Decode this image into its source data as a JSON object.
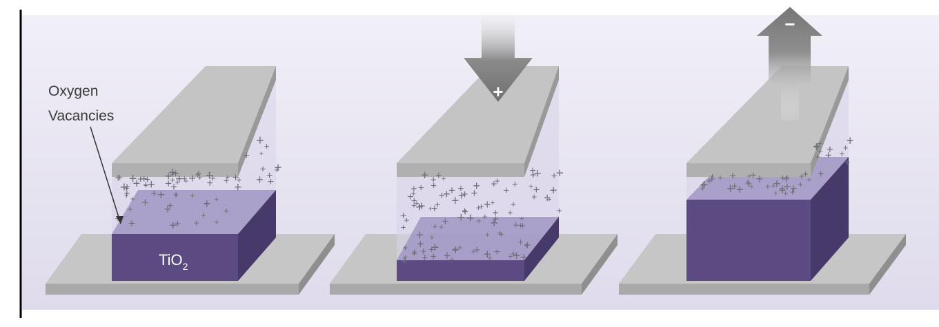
{
  "annotations": {
    "oxygen_line1": "Oxygen",
    "oxygen_line2": "Vacancies",
    "material": "TiO",
    "material_subscript": "2"
  },
  "arrows": {
    "press_symbol": "+",
    "lift_symbol": "−"
  },
  "colors": {
    "panel_background": "#e9e6f2",
    "plate_top": "#c4c4c4",
    "plate_side": "#9a9a9a",
    "plate_front": "#b5b5b5",
    "tio2_front": "#5a4a80",
    "tio2_side": "#4a3c6c",
    "tio2_top": "#8f7fb4",
    "vacancy_cloud": "#cdc4e2",
    "plus_sign": "#6f6f78"
  },
  "panels": [
    {
      "name": "initial-state"
    },
    {
      "name": "positive-voltage-state"
    },
    {
      "name": "negative-voltage-state"
    }
  ]
}
